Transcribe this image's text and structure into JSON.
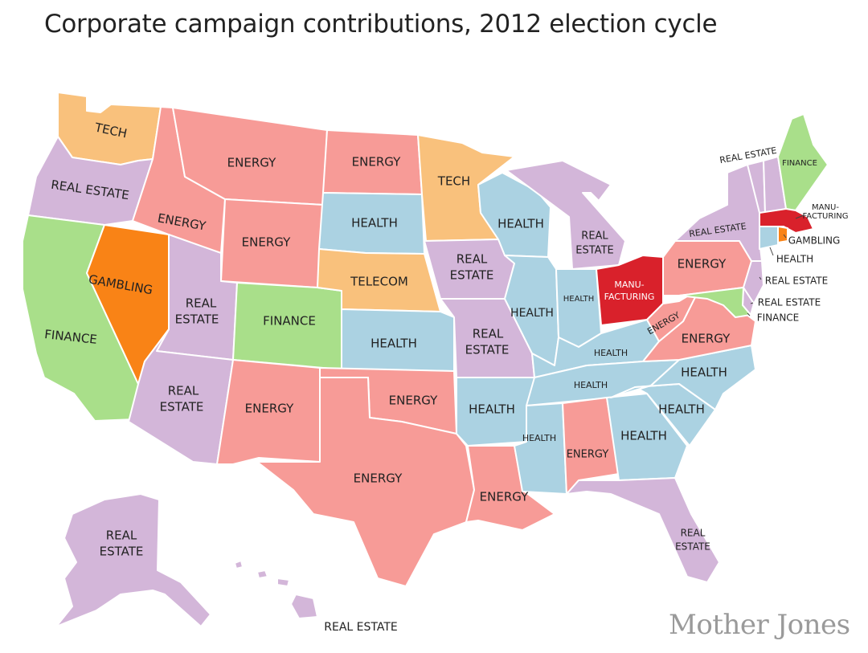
{
  "title": "Corporate campaign contributions, 2012 election cycle",
  "source": "Mother Jones",
  "colors": {
    "ENERGY": "#f79b97",
    "HEALTH": "#abd2e2",
    "REAL ESTATE": "#d3b6d9",
    "TECH": "#f9c17c",
    "TELECOM": "#f9c17c",
    "FINANCE": "#a9df8a",
    "GAMBLING": "#f98316",
    "MANUFACTURING": "#d9212b"
  },
  "states": [
    {
      "id": "WA",
      "industry": "TECH"
    },
    {
      "id": "OR",
      "industry": "REAL ESTATE"
    },
    {
      "id": "CA",
      "industry": "FINANCE"
    },
    {
      "id": "NV",
      "industry": "GAMBLING"
    },
    {
      "id": "ID",
      "industry": "ENERGY"
    },
    {
      "id": "MT",
      "industry": "ENERGY"
    },
    {
      "id": "WY",
      "industry": "ENERGY"
    },
    {
      "id": "UT",
      "industry": "REAL ESTATE"
    },
    {
      "id": "AZ",
      "industry": "REAL ESTATE"
    },
    {
      "id": "CO",
      "industry": "FINANCE"
    },
    {
      "id": "NM",
      "industry": "ENERGY"
    },
    {
      "id": "ND",
      "industry": "ENERGY"
    },
    {
      "id": "SD",
      "industry": "HEALTH"
    },
    {
      "id": "NE",
      "industry": "TELECOM"
    },
    {
      "id": "KS",
      "industry": "HEALTH"
    },
    {
      "id": "OK",
      "industry": "ENERGY"
    },
    {
      "id": "TX",
      "industry": "ENERGY"
    },
    {
      "id": "MN",
      "industry": "TECH"
    },
    {
      "id": "IA",
      "industry": "REAL ESTATE"
    },
    {
      "id": "MO",
      "industry": "REAL ESTATE"
    },
    {
      "id": "AR",
      "industry": "HEALTH"
    },
    {
      "id": "LA",
      "industry": "ENERGY"
    },
    {
      "id": "WI",
      "industry": "HEALTH"
    },
    {
      "id": "MI",
      "industry": "REAL ESTATE"
    },
    {
      "id": "IL",
      "industry": "HEALTH"
    },
    {
      "id": "IN",
      "industry": "HEALTH"
    },
    {
      "id": "OH",
      "industry": "MANUFACTURING"
    },
    {
      "id": "KY",
      "industry": "HEALTH"
    },
    {
      "id": "TN",
      "industry": "HEALTH"
    },
    {
      "id": "MS",
      "industry": "HEALTH"
    },
    {
      "id": "AL",
      "industry": "ENERGY"
    },
    {
      "id": "GA",
      "industry": "HEALTH"
    },
    {
      "id": "FL",
      "industry": "REAL ESTATE"
    },
    {
      "id": "SC",
      "industry": "HEALTH"
    },
    {
      "id": "NC",
      "industry": "HEALTH"
    },
    {
      "id": "VA",
      "industry": "ENERGY"
    },
    {
      "id": "WV",
      "industry": "ENERGY"
    },
    {
      "id": "PA",
      "industry": "ENERGY"
    },
    {
      "id": "NY",
      "industry": "REAL ESTATE"
    },
    {
      "id": "VT",
      "industry": "REAL ESTATE"
    },
    {
      "id": "NH",
      "industry": "REAL ESTATE"
    },
    {
      "id": "ME",
      "industry": "FINANCE"
    },
    {
      "id": "MA",
      "industry": "MANUFACTURING"
    },
    {
      "id": "RI",
      "industry": "GAMBLING"
    },
    {
      "id": "CT",
      "industry": "HEALTH"
    },
    {
      "id": "NJ",
      "industry": "REAL ESTATE"
    },
    {
      "id": "DE",
      "industry": "REAL ESTATE"
    },
    {
      "id": "MD",
      "industry": "FINANCE"
    },
    {
      "id": "AK",
      "industry": "REAL ESTATE"
    },
    {
      "id": "HI",
      "industry": "REAL ESTATE"
    }
  ],
  "labels": {
    "WA": "TECH",
    "OR": "REAL ESTATE",
    "CA": "FINANCE",
    "NV": "GAMBLING",
    "ID": "ENERGY",
    "MT": "ENERGY",
    "WY": "ENERGY",
    "UT_1": "REAL",
    "UT_2": "ESTATE",
    "AZ_1": "REAL",
    "AZ_2": "ESTATE",
    "CO": "FINANCE",
    "NM": "ENERGY",
    "ND": "ENERGY",
    "SD": "HEALTH",
    "NE": "TELECOM",
    "KS": "HEALTH",
    "OK": "ENERGY",
    "TX": "ENERGY",
    "MN": "TECH",
    "IA_1": "REAL",
    "IA_2": "ESTATE",
    "MO_1": "REAL",
    "MO_2": "ESTATE",
    "AR": "HEALTH",
    "LA": "ENERGY",
    "WI": "HEALTH",
    "MI_1": "REAL",
    "MI_2": "ESTATE",
    "IL": "HEALTH",
    "IN": "HEALTH",
    "OH_1": "MANU-",
    "OH_2": "FACTURING",
    "KY": "HEALTH",
    "TN": "HEALTH",
    "MS": "HEALTH",
    "AL": "ENERGY",
    "GA": "HEALTH",
    "FL_1": "REAL",
    "FL_2": "ESTATE",
    "SC": "HEALTH",
    "NC": "HEALTH",
    "VA": "ENERGY",
    "WV": "ENERGY",
    "PA": "ENERGY",
    "NY": "REAL ESTATE",
    "VT": "REAL ESTATE",
    "ME": "FINANCE",
    "MA_1": "MANU-",
    "MA_2": "FACTURING",
    "RI": "GAMBLING",
    "CT": "HEALTH",
    "NJ": "REAL ESTATE",
    "DE": "REAL ESTATE",
    "MD": "FINANCE",
    "AK_1": "REAL",
    "AK_2": "ESTATE",
    "HI": "REAL ESTATE"
  }
}
